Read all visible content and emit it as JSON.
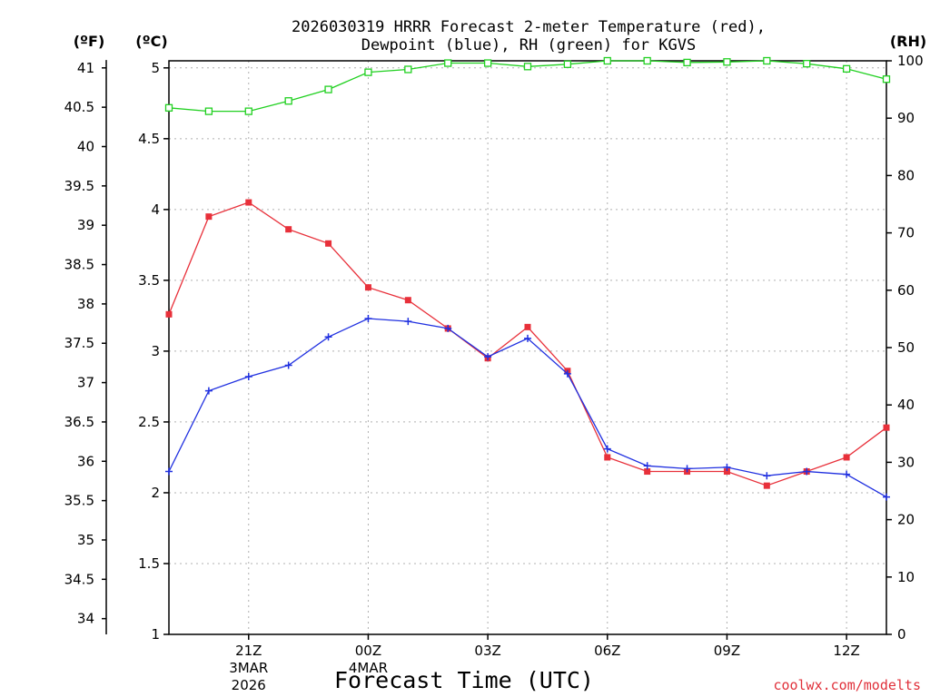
{
  "chart_data": {
    "type": "line",
    "title_line1": "2026030319 HRRR Forecast 2-meter Temperature (red),",
    "title_line2": "Dewpoint (blue), RH (green) for KGVS",
    "xlabel": "Forecast Time (UTC)",
    "credit": "coolwx.com/modelts",
    "unit_f": "(ºF)",
    "unit_c": "(ºC)",
    "unit_rh": "(RH)",
    "x_hours": [
      19,
      20,
      21,
      22,
      23,
      24,
      25,
      26,
      27,
      28,
      29,
      30,
      31,
      32,
      33,
      34,
      35,
      36,
      37
    ],
    "x_range": [
      19,
      37
    ],
    "x_ticks": [
      {
        "hour": 21,
        "label": "21Z",
        "date": "3MAR",
        "year": "2026"
      },
      {
        "hour": 24,
        "label": "00Z",
        "date": "4MAR",
        "year": ""
      },
      {
        "hour": 27,
        "label": "03Z",
        "date": "",
        "year": ""
      },
      {
        "hour": 30,
        "label": "06Z",
        "date": "",
        "year": ""
      },
      {
        "hour": 33,
        "label": "09Z",
        "date": "",
        "year": ""
      },
      {
        "hour": 36,
        "label": "12Z",
        "date": "",
        "year": ""
      }
    ],
    "c_range": [
      1,
      5.05
    ],
    "c_ticks": [
      "1",
      "1.5",
      "2",
      "2.5",
      "3",
      "3.5",
      "4",
      "4.5",
      "5"
    ],
    "f_ticks": [
      "34",
      "34.5",
      "35",
      "35.5",
      "36",
      "36.5",
      "37",
      "37.5",
      "38",
      "38.5",
      "39",
      "39.5",
      "40",
      "40.5",
      "41"
    ],
    "rh_range": [
      0,
      100
    ],
    "rh_ticks": [
      "0",
      "10",
      "20",
      "30",
      "40",
      "50",
      "60",
      "70",
      "80",
      "90",
      "100"
    ],
    "series": [
      {
        "name": "Temperature",
        "unit": "C",
        "color": "#e8303a",
        "marker": "filled-square",
        "values": [
          3.26,
          3.95,
          4.05,
          3.86,
          3.76,
          3.45,
          3.36,
          3.16,
          2.95,
          3.17,
          2.86,
          2.25,
          2.15,
          2.15,
          2.15,
          2.05,
          2.15,
          2.25,
          2.46
        ]
      },
      {
        "name": "Dewpoint",
        "unit": "C",
        "color": "#2030e0",
        "marker": "plus",
        "values": [
          2.15,
          2.72,
          2.82,
          2.9,
          3.1,
          3.23,
          3.21,
          3.16,
          2.96,
          3.09,
          2.84,
          2.31,
          2.19,
          2.17,
          2.18,
          2.12,
          2.15,
          2.13,
          1.97
        ]
      },
      {
        "name": "RH",
        "unit": "%",
        "color": "#20d020",
        "marker": "open-square",
        "values": [
          91.8,
          91.2,
          91.2,
          93.0,
          95.0,
          98.0,
          98.5,
          99.6,
          99.6,
          99.0,
          99.4,
          100,
          100,
          99.7,
          99.8,
          100,
          99.5,
          98.6,
          96.8
        ]
      }
    ]
  }
}
